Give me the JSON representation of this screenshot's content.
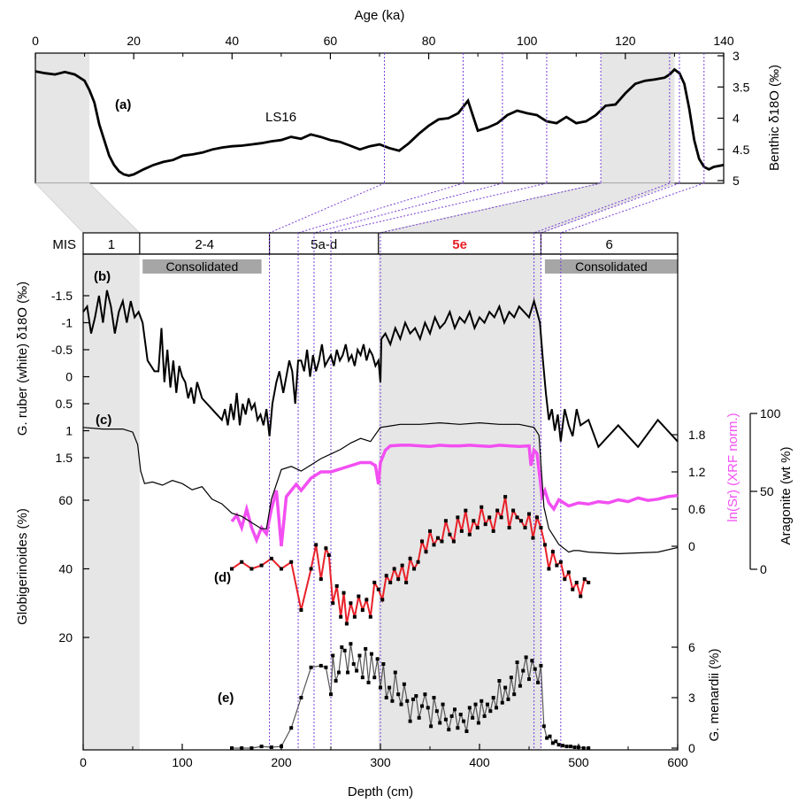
{
  "chart_data": [
    {
      "panel": "(a)",
      "type": "line",
      "annotation": "LS16",
      "xlabel": "Age (ka)",
      "xlim": [
        0,
        140
      ],
      "xticks": [
        0,
        20,
        40,
        60,
        80,
        100,
        120,
        140
      ],
      "ylabel": "Benthic δ18O (‰)",
      "ylim": [
        3,
        5
      ],
      "y_inverted": true,
      "yticks": [
        "3",
        "3.5",
        "4",
        "4.5",
        "5"
      ],
      "x": [
        0,
        2,
        4,
        6,
        8,
        10,
        11,
        12,
        13,
        14,
        15,
        16,
        17,
        18,
        19,
        20,
        22,
        24,
        26,
        28,
        30,
        32,
        34,
        36,
        38,
        40,
        42,
        44,
        46,
        48,
        50,
        52,
        54,
        56,
        58,
        60,
        62,
        64,
        66,
        68,
        70,
        72,
        74,
        76,
        78,
        80,
        82,
        84,
        86,
        88,
        90,
        92,
        94,
        96,
        98,
        100,
        102,
        104,
        106,
        108,
        110,
        112,
        114,
        116,
        118,
        120,
        122,
        124,
        126,
        128,
        129,
        130,
        131,
        132,
        133,
        134,
        135,
        136,
        137,
        138,
        140
      ],
      "values": [
        3.25,
        3.28,
        3.3,
        3.26,
        3.3,
        3.4,
        3.55,
        3.75,
        4.1,
        4.35,
        4.6,
        4.75,
        4.85,
        4.9,
        4.92,
        4.9,
        4.82,
        4.75,
        4.7,
        4.67,
        4.6,
        4.58,
        4.55,
        4.5,
        4.47,
        4.45,
        4.44,
        4.42,
        4.4,
        4.37,
        4.35,
        4.3,
        4.33,
        4.26,
        4.3,
        4.35,
        4.38,
        4.44,
        4.5,
        4.45,
        4.42,
        4.48,
        4.52,
        4.4,
        4.25,
        4.12,
        4.02,
        4.0,
        3.92,
        3.72,
        4.2,
        4.15,
        4.08,
        3.95,
        3.88,
        3.92,
        3.95,
        4.05,
        4.08,
        3.98,
        4.08,
        4.05,
        3.95,
        3.8,
        3.78,
        3.6,
        3.45,
        3.4,
        3.38,
        3.35,
        3.3,
        3.22,
        3.28,
        3.45,
        3.85,
        4.35,
        4.65,
        4.78,
        4.82,
        4.78,
        4.75
      ],
      "shaded_ranges": [
        [
          0,
          11
        ],
        [
          115,
          130
        ]
      ],
      "tie_points": [
        11,
        71,
        87,
        95,
        104,
        115,
        129,
        131,
        136
      ]
    },
    {
      "header": {
        "mis_label": "MIS",
        "stages": [
          {
            "label": "1",
            "from": 0,
            "to": 57
          },
          {
            "label": "2-4",
            "from": 57,
            "to": 188
          },
          {
            "label": "5a-d",
            "from": 188,
            "to": 298
          },
          {
            "label": "5e",
            "from": 298,
            "to": 462,
            "color": "#e8212a"
          },
          {
            "label": "6",
            "from": 462,
            "to": 600
          }
        ],
        "consolidated": [
          {
            "label": "Consolidated",
            "from": 60,
            "to": 180
          },
          {
            "label": "Consolidated",
            "from": 466,
            "to": 600
          }
        ],
        "shaded_ranges": [
          [
            0,
            57
          ],
          [
            298,
            462
          ]
        ],
        "tie_lines_depth": [
          188,
          217,
          233,
          250,
          300,
          455,
          462,
          482
        ]
      },
      "xlabel": "Depth (cm)",
      "xlim": [
        0,
        600
      ],
      "xticks": [
        0,
        100,
        200,
        300,
        400,
        500,
        600
      ]
    },
    {
      "panel": "(b)",
      "type": "line",
      "ylabel": "G. ruber (white) δ18O (‰)",
      "ylim": [
        -1.7,
        1.6
      ],
      "y_inverted": true,
      "yticks": [
        "-1.5",
        "-1",
        "-0.5",
        "0",
        "0.5",
        "1",
        "1.5"
      ],
      "x": [
        0,
        4,
        8,
        12,
        16,
        20,
        24,
        28,
        32,
        36,
        40,
        44,
        48,
        52,
        56,
        60,
        65,
        72,
        76,
        79,
        82,
        85,
        88,
        91,
        94,
        97,
        100,
        103,
        106,
        109,
        112,
        115,
        120,
        125,
        130,
        135,
        140,
        143,
        146,
        149,
        152,
        155,
        158,
        161,
        164,
        167,
        170,
        173,
        176,
        179,
        182,
        185,
        188,
        191,
        195,
        198,
        202,
        205,
        208,
        211,
        214,
        217,
        220,
        223,
        226,
        229,
        232,
        235,
        238,
        241,
        244,
        247,
        250,
        253,
        256,
        259,
        262,
        265,
        268,
        271,
        274,
        277,
        280,
        283,
        286,
        289,
        292,
        295,
        298,
        300,
        301,
        305,
        310,
        315,
        320,
        325,
        330,
        335,
        340,
        345,
        350,
        355,
        360,
        365,
        370,
        375,
        380,
        385,
        390,
        395,
        400,
        405,
        410,
        415,
        420,
        425,
        430,
        435,
        440,
        445,
        450,
        455,
        458,
        461,
        464,
        467,
        470,
        473,
        476,
        479,
        482,
        486,
        490,
        494,
        498,
        502,
        510,
        520,
        540,
        560,
        580,
        600
      ],
      "values": [
        -1.2,
        -1.3,
        -0.8,
        -1.1,
        -1.5,
        -1.0,
        -1.6,
        -1.3,
        -0.8,
        -1.2,
        -1.4,
        -1.0,
        -1.4,
        -1.1,
        -1.2,
        -1.0,
        -0.3,
        -0.1,
        -0.1,
        -0.9,
        0.1,
        -0.5,
        0.2,
        -0.3,
        0.3,
        -0.2,
        0.0,
        0.1,
        0.4,
        0.2,
        0.5,
        0.1,
        0.4,
        0.5,
        0.6,
        0.7,
        0.8,
        0.6,
        0.9,
        0.5,
        0.8,
        0.3,
        0.9,
        0.5,
        0.7,
        0.4,
        0.6,
        0.5,
        0.8,
        0.7,
        0.9,
        0.6,
        1.1,
        0.5,
        0.1,
        -0.1,
        0.3,
        0.0,
        -0.3,
        -0.1,
        0.5,
        -0.3,
        -0.3,
        -0.1,
        -0.5,
        0.0,
        -0.4,
        -0.1,
        -0.3,
        -0.6,
        -0.2,
        -0.3,
        -0.4,
        -0.2,
        -0.5,
        -0.3,
        -0.4,
        -0.6,
        -0.3,
        -0.4,
        -0.2,
        -0.5,
        -0.4,
        -0.6,
        -0.3,
        -0.5,
        -0.4,
        -0.2,
        -0.3,
        0.1,
        -0.7,
        -0.8,
        -0.6,
        -0.9,
        -0.7,
        -1.0,
        -0.8,
        -0.9,
        -0.7,
        -1.0,
        -0.8,
        -1.1,
        -0.9,
        -1.0,
        -1.2,
        -0.9,
        -1.1,
        -1.0,
        -1.2,
        -0.9,
        -1.1,
        -1.0,
        -1.2,
        -1.1,
        -1.3,
        -1.0,
        -1.2,
        -1.1,
        -1.3,
        -1.2,
        -1.1,
        -1.4,
        -1.2,
        -1.0,
        -0.3,
        0.3,
        0.8,
        0.6,
        1.0,
        0.7,
        1.2,
        0.6,
        0.9,
        1.1,
        0.6,
        0.9,
        0.8,
        1.3,
        0.9,
        1.3,
        0.8,
        1.2
      ]
    },
    {
      "panel": "(c)",
      "type": "line",
      "series": [
        {
          "name": "Aragonite (wt %)",
          "color": "#000000",
          "ylim": [
            0,
            100
          ],
          "yticks": [
            "0",
            "50",
            "100"
          ],
          "x": [
            0,
            20,
            40,
            50,
            55,
            58,
            62,
            70,
            80,
            90,
            100,
            110,
            120,
            130,
            140,
            150,
            160,
            170,
            180,
            185,
            190,
            200,
            210,
            220,
            230,
            240,
            250,
            260,
            270,
            280,
            290,
            300,
            310,
            320,
            340,
            360,
            380,
            400,
            420,
            440,
            455,
            460,
            465,
            470,
            480,
            490,
            495,
            500,
            510,
            540,
            580,
            600
          ],
          "values": [
            91,
            90,
            90,
            88,
            80,
            63,
            55,
            56,
            54,
            57,
            55,
            51,
            53,
            45,
            42,
            36,
            34,
            30,
            26,
            26,
            45,
            64,
            66,
            63,
            67,
            71,
            74,
            77,
            81,
            84,
            82,
            91,
            92,
            93,
            93,
            94,
            93,
            94,
            93,
            93,
            91,
            86,
            40,
            26,
            16,
            11,
            12,
            12,
            11,
            10,
            11,
            14
          ]
        },
        {
          "name": "ln(Sr) (XRF norm.)",
          "color": "#f24ff2",
          "ylim": [
            -0.3,
            1.9
          ],
          "yticks": [
            "0",
            "0.6",
            "1.2",
            "1.8"
          ],
          "x": [
            150,
            155,
            160,
            165,
            170,
            175,
            180,
            185,
            190,
            195,
            200,
            205,
            210,
            215,
            220,
            225,
            230,
            240,
            250,
            260,
            270,
            280,
            290,
            295,
            298,
            300,
            305,
            310,
            320,
            330,
            340,
            350,
            360,
            370,
            380,
            390,
            400,
            410,
            420,
            430,
            440,
            450,
            452,
            455,
            458,
            461,
            463,
            466,
            470,
            475,
            480,
            490,
            500,
            510,
            520,
            530,
            540,
            550,
            560,
            570,
            580,
            590,
            600
          ],
          "values": [
            0.4,
            0.5,
            0.3,
            0.6,
            0.3,
            0.1,
            0.3,
            0.2,
            0.6,
            0.9,
            0.0,
            0.8,
            0.9,
            1.0,
            0.9,
            1.0,
            1.1,
            1.2,
            1.2,
            1.25,
            1.3,
            1.35,
            1.35,
            1.3,
            1.0,
            1.35,
            1.55,
            1.62,
            1.63,
            1.63,
            1.62,
            1.61,
            1.63,
            1.62,
            1.62,
            1.63,
            1.62,
            1.61,
            1.63,
            1.62,
            1.61,
            1.62,
            1.3,
            1.55,
            1.5,
            1.1,
            0.8,
            0.9,
            0.7,
            0.6,
            0.75,
            0.65,
            0.7,
            0.68,
            0.72,
            0.7,
            0.75,
            0.72,
            0.78,
            0.74,
            0.76,
            0.8,
            0.82
          ]
        }
      ]
    },
    {
      "panel": "(d)",
      "type": "line",
      "ylabel": "Globigerinoides (%)",
      "ylim": [
        10,
        65
      ],
      "yticks": [
        "20",
        "40",
        "60"
      ],
      "color": "#e8212a",
      "x": [
        150,
        160,
        170,
        180,
        190,
        200,
        210,
        220,
        230,
        235,
        240,
        245,
        248,
        252,
        256,
        260,
        263,
        266,
        270,
        274,
        278,
        282,
        286,
        290,
        294,
        298,
        302,
        306,
        310,
        314,
        318,
        322,
        326,
        330,
        334,
        338,
        342,
        346,
        350,
        354,
        358,
        362,
        366,
        370,
        374,
        378,
        382,
        386,
        390,
        394,
        398,
        402,
        406,
        410,
        414,
        418,
        422,
        426,
        430,
        434,
        438,
        442,
        446,
        450,
        454,
        458,
        462,
        466,
        470,
        474,
        478,
        482,
        486,
        490,
        494,
        498,
        502,
        506,
        510
      ],
      "values": [
        40,
        42,
        40,
        41,
        43,
        40,
        42,
        28,
        40,
        47,
        37,
        46,
        44,
        30,
        35,
        26,
        33,
        24,
        30,
        26,
        32,
        28,
        31,
        26,
        36,
        34,
        31,
        38,
        36,
        40,
        37,
        41,
        36,
        43,
        40,
        42,
        48,
        45,
        51,
        47,
        49,
        48,
        54,
        50,
        48,
        55,
        51,
        57,
        50,
        54,
        52,
        58,
        53,
        55,
        51,
        57,
        55,
        61,
        52,
        57,
        55,
        54,
        52,
        56,
        49,
        55,
        52,
        47,
        40,
        45,
        41,
        42,
        37,
        39,
        34,
        36,
        32,
        37,
        36
      ]
    },
    {
      "panel": "(e)",
      "type": "line",
      "ylabel": "G. menardii (%)",
      "ylim": [
        0,
        7
      ],
      "yticks": [
        "0",
        "3",
        "6"
      ],
      "x": [
        150,
        160,
        170,
        180,
        190,
        200,
        210,
        220,
        230,
        240,
        245,
        250,
        252,
        255,
        258,
        261,
        264,
        267,
        270,
        273,
        276,
        279,
        282,
        285,
        288,
        291,
        294,
        297,
        300,
        303,
        306,
        309,
        312,
        315,
        318,
        321,
        324,
        327,
        330,
        333,
        336,
        339,
        342,
        345,
        348,
        351,
        354,
        357,
        360,
        363,
        366,
        369,
        372,
        375,
        378,
        381,
        384,
        387,
        390,
        393,
        396,
        399,
        402,
        405,
        408,
        411,
        414,
        417,
        420,
        423,
        426,
        429,
        432,
        435,
        438,
        441,
        444,
        447,
        450,
        453,
        456,
        459,
        462,
        465,
        468,
        471,
        474,
        477,
        480,
        484,
        488,
        492,
        496,
        500,
        505,
        510
      ],
      "values": [
        0,
        0,
        0,
        0.1,
        0.05,
        0.1,
        1.2,
        3.0,
        4.8,
        4.9,
        4.8,
        3.2,
        5.5,
        4.0,
        4.5,
        6.0,
        5.8,
        4.5,
        6.2,
        5.0,
        4.6,
        5.5,
        4.2,
        5.9,
        3.9,
        5.6,
        4.2,
        5.3,
        3.6,
        5.0,
        3.0,
        3.6,
        2.8,
        4.5,
        3.2,
        2.6,
        3.8,
        2.8,
        1.6,
        2.9,
        3.1,
        1.8,
        2.5,
        3.2,
        2.4,
        1.3,
        3.0,
        2.2,
        1.5,
        2.6,
        1.7,
        1.1,
        1.9,
        2.3,
        1.2,
        2.0,
        1.6,
        1.0,
        2.4,
        1.8,
        2.6,
        1.5,
        2.8,
        1.9,
        2.6,
        2.2,
        3.0,
        2.4,
        4.0,
        2.7,
        3.6,
        2.9,
        4.2,
        3.2,
        5.1,
        3.7,
        4.6,
        5.4,
        4.1,
        5.2,
        4.7,
        3.9,
        4.9,
        1.3,
        0.6,
        0.7,
        0.3,
        0.4,
        0.2,
        0.15,
        0.1,
        0.1,
        0.05,
        0.05,
        0,
        0
      ]
    }
  ]
}
